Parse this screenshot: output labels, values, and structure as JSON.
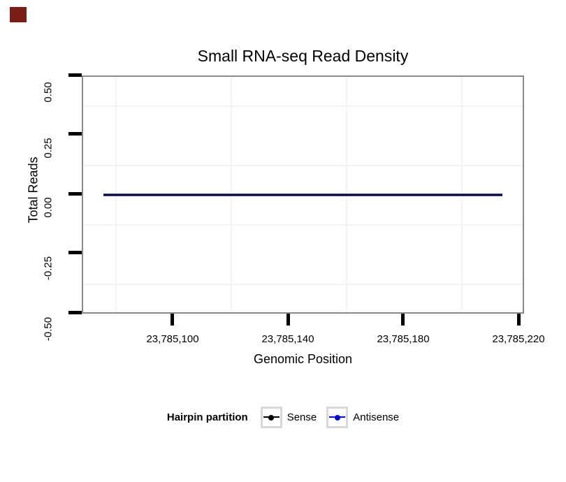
{
  "corner_marker": {
    "color": "#7a1d16"
  },
  "chart_data": {
    "type": "line",
    "title": "Small RNA-seq Read Density",
    "xlabel": "Genomic Position",
    "ylabel": "Total Reads",
    "x_ticks": [
      "23,785,100",
      "23,785,140",
      "23,785,180",
      "23,785,220"
    ],
    "x_tick_values": [
      23785100,
      23785140,
      23785180,
      23785220
    ],
    "xlim": [
      23785068,
      23785222
    ],
    "y_ticks": [
      "0.50",
      "0.25",
      "0.00",
      "-0.25",
      "-0.50"
    ],
    "y_tick_values": [
      0.5,
      0.25,
      0,
      -0.25,
      -0.5
    ],
    "ylim": [
      -0.5,
      0.5
    ],
    "grid": "faint light-gray gridlines at minor (half-interval) positions only, white panel background, gray panel border",
    "series": [
      {
        "name": "Sense",
        "color": "#000000",
        "y_constant": 0,
        "x_range": [
          23785075,
          23785215
        ]
      },
      {
        "name": "Antisense",
        "color": "#0000e0",
        "y_constant": 0,
        "x_range": [
          23785075,
          23785215
        ]
      }
    ],
    "plotted_line_color": "#0b0b2e",
    "legend": {
      "title": "Hairpin partition",
      "position": "bottom",
      "entries": [
        {
          "label": "Sense",
          "color": "#000000"
        },
        {
          "label": "Antisense",
          "color": "#0000e0"
        }
      ]
    }
  }
}
